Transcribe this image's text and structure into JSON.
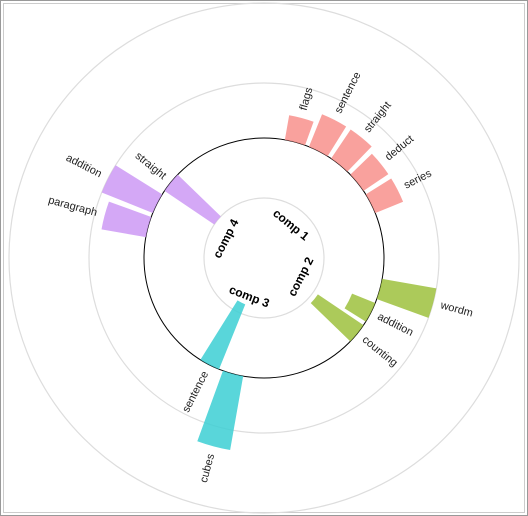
{
  "chart_data": {
    "type": "radial-bar",
    "ylim": [
      -120,
      135
    ],
    "yticks": [
      -60,
      0,
      55,
      135
    ],
    "grid": true,
    "series": [
      {
        "name": "comp 1",
        "color": "#f8918c",
        "categories": [
          "flags",
          "sentence",
          "straight",
          "deduct",
          "series"
        ],
        "values": [
          25,
          35,
          35,
          30,
          30
        ]
      },
      {
        "name": "comp 2",
        "color": "#9dc13d",
        "categories": [
          "wordm",
          "addition",
          "counting"
        ],
        "values": [
          55,
          -25,
          -55
        ]
      },
      {
        "name": "comp 3",
        "color": "#3ccfd3",
        "categories": [
          "cubes",
          "sentence"
        ],
        "values": [
          75,
          -70
        ]
      },
      {
        "name": "comp 4",
        "color": "#cc99f5",
        "categories": [
          "paragraph",
          "addition",
          "straight"
        ],
        "values": [
          45,
          55,
          -60
        ]
      }
    ]
  }
}
